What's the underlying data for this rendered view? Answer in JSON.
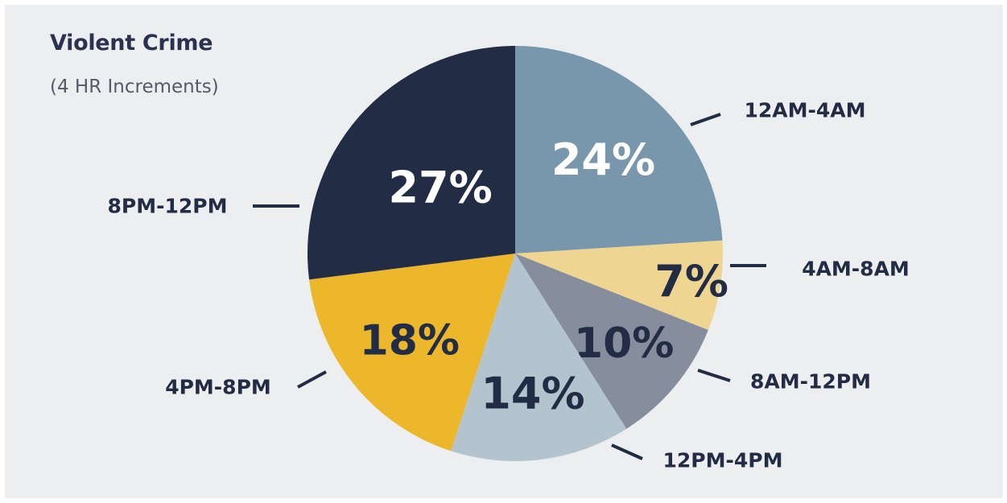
{
  "chart": {
    "title": "Violent Crime",
    "subtitle": "(4 HR Increments)"
  },
  "colors": {
    "background": "#edeef0",
    "leader": "#222c45"
  },
  "chart_data": {
    "type": "pie",
    "title": "Violent Crime",
    "subtitle": "(4 HR Increments)",
    "unit": "%",
    "start_angle_deg": 0,
    "direction": "clockwise",
    "slices": [
      {
        "label": "12AM-4AM",
        "value": 24,
        "display": "24%",
        "color": "#7897ad",
        "text_color": "#ffffff"
      },
      {
        "label": "4AM-8AM",
        "value": 7,
        "display": "7%",
        "color": "#eed592",
        "text_color": "#222c45"
      },
      {
        "label": "8AM-12PM",
        "value": 10,
        "display": "10%",
        "color": "#868d9c",
        "text_color": "#222c45"
      },
      {
        "label": "12PM-4PM",
        "value": 14,
        "display": "14%",
        "color": "#b4c4cf",
        "text_color": "#222c45"
      },
      {
        "label": "4PM-8PM",
        "value": 18,
        "display": "18%",
        "color": "#ecb72b",
        "text_color": "#222c45"
      },
      {
        "label": "8PM-12PM",
        "value": 27,
        "display": "27%",
        "color": "#222c45",
        "text_color": "#ffffff"
      }
    ]
  }
}
